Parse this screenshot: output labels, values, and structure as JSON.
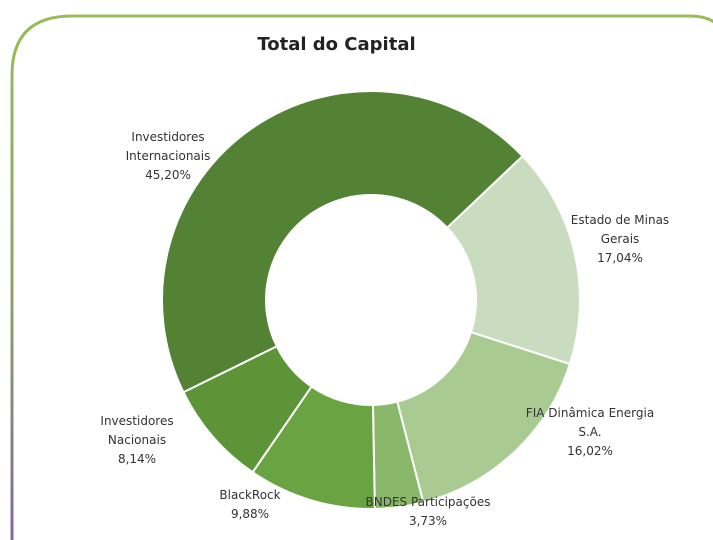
{
  "chart_data": {
    "type": "donut",
    "title": "Total do Capital",
    "categories": [
      "Investidores Internacionais",
      "Estado de Minas Gerais",
      "FIA Dinâmica Energia S.A.",
      "BNDES Participações",
      "BlackRock",
      "Investidores Nacionais"
    ],
    "values": [
      45.2,
      17.04,
      16.02,
      3.73,
      9.88,
      8.14
    ],
    "value_labels": [
      "45,20%",
      "17,04%",
      "16,02%",
      "3,73%",
      "9,88%",
      "8,14%"
    ],
    "colors": [
      "#548235",
      "#c9dcbf",
      "#a9cb91",
      "#8ab86a",
      "#6aa442",
      "#5e9438"
    ]
  }
}
